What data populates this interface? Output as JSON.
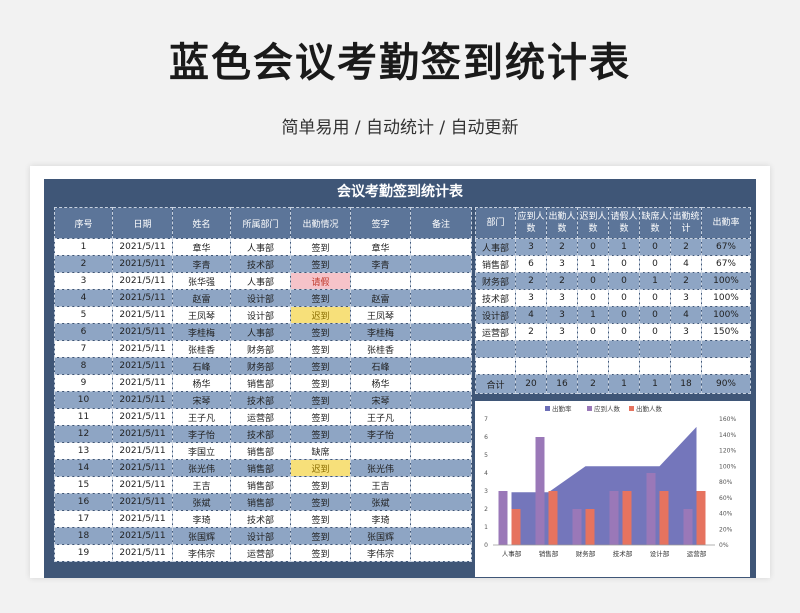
{
  "hero": {
    "title": "蓝色会议考勤签到统计表",
    "subtitle": "简单易用 / 自动统计 / 自动更新"
  },
  "sheet": {
    "title": "会议考勤签到统计表"
  },
  "attendance": {
    "headers": [
      "序号",
      "日期",
      "姓名",
      "所属部门",
      "出勤情况",
      "签字",
      "备注"
    ],
    "rows": [
      {
        "no": "1",
        "date": "2021/5/11",
        "name": "章华",
        "dept": "人事部",
        "status": "签到",
        "sign": "章华",
        "note": ""
      },
      {
        "no": "2",
        "date": "2021/5/11",
        "name": "李青",
        "dept": "技术部",
        "status": "签到",
        "sign": "李青",
        "note": ""
      },
      {
        "no": "3",
        "date": "2021/5/11",
        "name": "张华强",
        "dept": "人事部",
        "status": "请假",
        "sign": "",
        "note": ""
      },
      {
        "no": "4",
        "date": "2021/5/11",
        "name": "赵雷",
        "dept": "设计部",
        "status": "签到",
        "sign": "赵雷",
        "note": ""
      },
      {
        "no": "5",
        "date": "2021/5/11",
        "name": "王凤琴",
        "dept": "设计部",
        "status": "迟到",
        "sign": "王凤琴",
        "note": ""
      },
      {
        "no": "6",
        "date": "2021/5/11",
        "name": "李桂梅",
        "dept": "人事部",
        "status": "签到",
        "sign": "李桂梅",
        "note": ""
      },
      {
        "no": "7",
        "date": "2021/5/11",
        "name": "张桂香",
        "dept": "财务部",
        "status": "签到",
        "sign": "张桂香",
        "note": ""
      },
      {
        "no": "8",
        "date": "2021/5/11",
        "name": "石峰",
        "dept": "财务部",
        "status": "签到",
        "sign": "石峰",
        "note": ""
      },
      {
        "no": "9",
        "date": "2021/5/11",
        "name": "杨华",
        "dept": "销售部",
        "status": "签到",
        "sign": "杨华",
        "note": ""
      },
      {
        "no": "10",
        "date": "2021/5/11",
        "name": "宋琴",
        "dept": "技术部",
        "status": "签到",
        "sign": "宋琴",
        "note": ""
      },
      {
        "no": "11",
        "date": "2021/5/11",
        "name": "王子凡",
        "dept": "运营部",
        "status": "签到",
        "sign": "王子凡",
        "note": ""
      },
      {
        "no": "12",
        "date": "2021/5/11",
        "name": "李子怡",
        "dept": "技术部",
        "status": "签到",
        "sign": "李子怡",
        "note": ""
      },
      {
        "no": "13",
        "date": "2021/5/11",
        "name": "李国立",
        "dept": "销售部",
        "status": "缺席",
        "sign": "",
        "note": ""
      },
      {
        "no": "14",
        "date": "2021/5/11",
        "name": "张光伟",
        "dept": "销售部",
        "status": "迟到",
        "sign": "张光伟",
        "note": ""
      },
      {
        "no": "15",
        "date": "2021/5/11",
        "name": "王吉",
        "dept": "销售部",
        "status": "签到",
        "sign": "王吉",
        "note": ""
      },
      {
        "no": "16",
        "date": "2021/5/11",
        "name": "张斌",
        "dept": "销售部",
        "status": "签到",
        "sign": "张斌",
        "note": ""
      },
      {
        "no": "17",
        "date": "2021/5/11",
        "name": "李琦",
        "dept": "技术部",
        "status": "签到",
        "sign": "李琦",
        "note": ""
      },
      {
        "no": "18",
        "date": "2021/5/11",
        "name": "张国辉",
        "dept": "设计部",
        "status": "签到",
        "sign": "张国辉",
        "note": ""
      },
      {
        "no": "19",
        "date": "2021/5/11",
        "name": "李伟宗",
        "dept": "运营部",
        "status": "签到",
        "sign": "李伟宗",
        "note": ""
      }
    ]
  },
  "summary": {
    "headers": [
      "部门",
      "应到人数",
      "出勤人数",
      "迟到人数",
      "请假人数",
      "缺席人数",
      "出勤统计",
      "出勤率"
    ],
    "rows": [
      [
        "人事部",
        "3",
        "2",
        "0",
        "1",
        "0",
        "2",
        "67%"
      ],
      [
        "销售部",
        "6",
        "3",
        "1",
        "0",
        "0",
        "4",
        "67%"
      ],
      [
        "财务部",
        "2",
        "2",
        "0",
        "0",
        "1",
        "2",
        "100%"
      ],
      [
        "技术部",
        "3",
        "3",
        "0",
        "0",
        "0",
        "3",
        "100%"
      ],
      [
        "设计部",
        "4",
        "3",
        "1",
        "0",
        "0",
        "4",
        "100%"
      ],
      [
        "运营部",
        "2",
        "3",
        "0",
        "0",
        "0",
        "3",
        "150%"
      ],
      [
        "",
        "",
        "",
        "",
        "",
        "",
        "",
        ""
      ],
      [
        "",
        "",
        "",
        "",
        "",
        "",
        "",
        ""
      ]
    ],
    "total": [
      "合计",
      "20",
      "16",
      "2",
      "1",
      "1",
      "18",
      "90%"
    ]
  },
  "chart_data": {
    "type": "bar",
    "categories": [
      "人事部",
      "销售部",
      "财务部",
      "技术部",
      "设计部",
      "运营部"
    ],
    "series": [
      {
        "name": "出勤率",
        "type": "area",
        "axis": "right",
        "values": [
          67,
          67,
          100,
          100,
          100,
          150
        ],
        "color": "#6d6fb7"
      },
      {
        "name": "应到人数",
        "type": "bar",
        "values": [
          3,
          6,
          2,
          3,
          4,
          2
        ],
        "color": "#9a78b8"
      },
      {
        "name": "出勤人数",
        "type": "bar",
        "values": [
          2,
          3,
          2,
          3,
          3,
          3
        ],
        "color": "#e6735f"
      }
    ],
    "ylim": [
      0,
      7
    ],
    "y_ticks": [
      "0",
      "1",
      "2",
      "3",
      "4",
      "5",
      "6",
      "7"
    ],
    "y2lim": [
      0,
      160
    ],
    "y2_ticks": [
      "0%",
      "20%",
      "40%",
      "60%",
      "80%",
      "100%",
      "120%",
      "140%",
      "160%"
    ],
    "legend_position": "top"
  }
}
